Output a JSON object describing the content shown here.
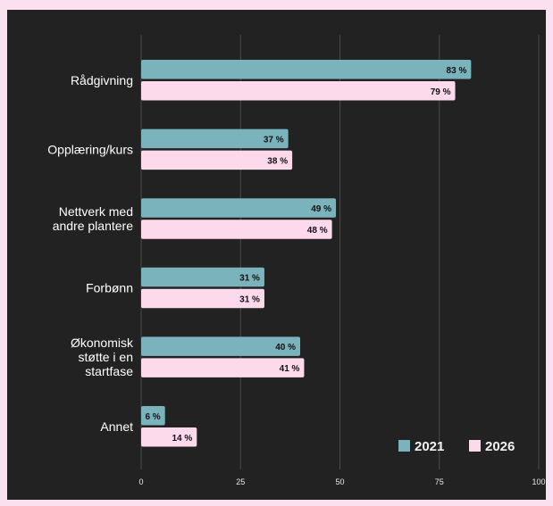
{
  "colors": {
    "page_background": "#fbe0f0",
    "chart_background": "#222222",
    "series_2021": "#7ab3bc",
    "series_2026": "#fdd9ec",
    "gridline": "#4a4a4a"
  },
  "chart_data": {
    "type": "bar",
    "orientation": "horizontal",
    "title": "",
    "xlabel": "",
    "ylabel": "",
    "categories": [
      "Rådgivning",
      "Opplæring/kurs",
      "Nettverk med andre plantere",
      "Forbønn",
      "Økonomisk støtte i en startfase",
      "Annet"
    ],
    "category_lines": [
      [
        "Rådgivning"
      ],
      [
        "Opplæring/kurs"
      ],
      [
        "Nettverk med",
        "andre plantere"
      ],
      [
        "Forbønn"
      ],
      [
        "Økonomisk",
        "støtte i en",
        "startfase"
      ],
      [
        "Annet"
      ]
    ],
    "series": [
      {
        "name": "2021",
        "values": [
          83,
          37,
          49,
          31,
          40,
          6
        ],
        "labels": [
          "83 %",
          "37 %",
          "49 %",
          "31 %",
          "40 %",
          "6 %"
        ]
      },
      {
        "name": "2026",
        "values": [
          79,
          38,
          48,
          31,
          41,
          14
        ],
        "labels": [
          "79 %",
          "38 %",
          "48 %",
          "31 %",
          "41 %",
          "14 %"
        ]
      }
    ],
    "xlim": [
      0,
      100
    ],
    "x_ticks": [
      0,
      25,
      50,
      75,
      100
    ],
    "grid": true,
    "legend_position": "bottom-right"
  }
}
